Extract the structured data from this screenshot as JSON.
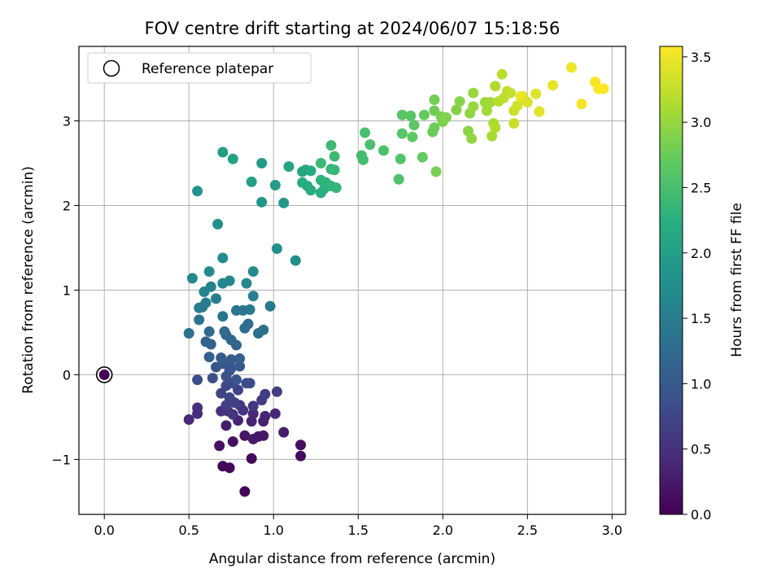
{
  "chart_data": {
    "type": "scatter",
    "title": "FOV centre drift starting at 2024/06/07 15:18:56",
    "xlabel": "Angular distance from reference (arcmin)",
    "ylabel": "Rotation from reference (arcmin)",
    "xlim": [
      -0.15,
      3.08
    ],
    "ylim": [
      -1.65,
      3.88
    ],
    "xticks": [
      0.0,
      0.5,
      1.0,
      1.5,
      2.0,
      2.5,
      3.0
    ],
    "xtick_labels": [
      "0.0",
      "0.5",
      "1.0",
      "1.5",
      "2.0",
      "2.5",
      "3.0"
    ],
    "yticks": [
      -1,
      0,
      1,
      2,
      3
    ],
    "ytick_labels": [
      "−1",
      "0",
      "1",
      "2",
      "3"
    ],
    "grid": true,
    "legend": {
      "position": "top-left",
      "entries": [
        "Reference platepar"
      ]
    },
    "reference_point": {
      "x": 0.0,
      "y": 0.0,
      "c": 0.0
    },
    "colorbar": {
      "label": "Hours from first FF file",
      "colormap": "viridis",
      "range": [
        0.0,
        3.58
      ],
      "ticks": [
        0.0,
        0.5,
        1.0,
        1.5,
        2.0,
        2.5,
        3.0,
        3.5
      ],
      "tick_labels": [
        "0.0",
        "0.5",
        "1.0",
        "1.5",
        "2.0",
        "2.5",
        "3.0",
        "3.5"
      ]
    },
    "points": [
      [
        0.83,
        -1.38,
        0.02
      ],
      [
        0.7,
        -1.08,
        0.05
      ],
      [
        0.74,
        -1.1,
        0.07
      ],
      [
        0.87,
        -0.99,
        0.09
      ],
      [
        1.16,
        -0.96,
        0.11
      ],
      [
        1.16,
        -0.83,
        0.13
      ],
      [
        0.68,
        -0.84,
        0.15
      ],
      [
        0.76,
        -0.79,
        0.17
      ],
      [
        0.83,
        -0.72,
        0.19
      ],
      [
        0.91,
        -0.73,
        0.21
      ],
      [
        0.94,
        -0.72,
        0.23
      ],
      [
        0.88,
        -0.76,
        0.25
      ],
      [
        1.06,
        -0.68,
        0.27
      ],
      [
        0.72,
        -0.6,
        0.29
      ],
      [
        0.94,
        -0.55,
        0.31
      ],
      [
        0.79,
        -0.54,
        0.33
      ],
      [
        0.87,
        -0.55,
        0.35
      ],
      [
        0.95,
        -0.49,
        0.37
      ],
      [
        1.01,
        -0.46,
        0.39
      ],
      [
        0.88,
        -0.46,
        0.41
      ],
      [
        0.5,
        -0.53,
        0.43
      ],
      [
        0.55,
        -0.46,
        0.45
      ],
      [
        0.55,
        -0.39,
        0.47
      ],
      [
        0.69,
        -0.43,
        0.49
      ],
      [
        0.73,
        -0.43,
        0.51
      ],
      [
        0.76,
        -0.47,
        0.53
      ],
      [
        0.82,
        -0.42,
        0.55
      ],
      [
        0.8,
        -0.36,
        0.57
      ],
      [
        0.88,
        -0.37,
        0.59
      ],
      [
        0.93,
        -0.3,
        0.61
      ],
      [
        0.95,
        -0.23,
        0.63
      ],
      [
        1.02,
        -0.2,
        0.65
      ],
      [
        0.72,
        -0.36,
        0.67
      ],
      [
        0.77,
        -0.33,
        0.69
      ],
      [
        0.74,
        -0.27,
        0.71
      ],
      [
        0.69,
        -0.22,
        0.73
      ],
      [
        0.79,
        -0.18,
        0.75
      ],
      [
        0.72,
        -0.13,
        0.77
      ],
      [
        0.76,
        -0.1,
        0.79
      ],
      [
        0.84,
        -0.1,
        0.81
      ],
      [
        0.86,
        -0.1,
        0.83
      ],
      [
        0.55,
        -0.06,
        0.85
      ],
      [
        0.64,
        -0.04,
        0.87
      ],
      [
        0.72,
        -0.02,
        0.89
      ],
      [
        0.74,
        0.05,
        0.91
      ],
      [
        0.78,
        -0.06,
        0.93
      ],
      [
        0.66,
        0.09,
        0.95
      ],
      [
        0.75,
        0.08,
        0.97
      ],
      [
        0.8,
        0.1,
        0.99
      ],
      [
        0.7,
        0.13,
        1.01
      ],
      [
        0.69,
        0.2,
        1.03
      ],
      [
        0.75,
        0.18,
        1.05
      ],
      [
        0.8,
        0.19,
        1.07
      ],
      [
        0.62,
        0.21,
        1.09
      ],
      [
        0.63,
        0.36,
        1.11
      ],
      [
        0.78,
        0.35,
        1.13
      ],
      [
        0.6,
        0.39,
        1.15
      ],
      [
        0.72,
        0.47,
        1.17
      ],
      [
        0.75,
        0.41,
        1.19
      ],
      [
        0.62,
        0.51,
        1.21
      ],
      [
        0.71,
        0.51,
        1.23
      ],
      [
        0.83,
        0.55,
        1.25
      ],
      [
        0.85,
        0.6,
        1.27
      ],
      [
        0.91,
        0.49,
        1.29
      ],
      [
        0.94,
        0.53,
        1.31
      ],
      [
        0.5,
        0.49,
        1.33
      ],
      [
        0.56,
        0.65,
        1.35
      ],
      [
        0.7,
        0.69,
        1.37
      ],
      [
        0.78,
        0.76,
        1.39
      ],
      [
        0.82,
        0.76,
        1.41
      ],
      [
        0.86,
        0.77,
        1.43
      ],
      [
        0.98,
        0.81,
        1.45
      ],
      [
        0.56,
        0.79,
        1.47
      ],
      [
        0.58,
        0.8,
        1.49
      ],
      [
        0.6,
        0.85,
        1.51
      ],
      [
        0.66,
        0.9,
        1.53
      ],
      [
        0.88,
        0.93,
        1.55
      ],
      [
        0.59,
        0.98,
        1.57
      ],
      [
        0.63,
        1.04,
        1.59
      ],
      [
        0.7,
        1.08,
        1.61
      ],
      [
        0.74,
        1.11,
        1.63
      ],
      [
        0.84,
        1.08,
        1.65
      ],
      [
        0.52,
        1.14,
        1.67
      ],
      [
        0.62,
        1.22,
        1.69
      ],
      [
        0.88,
        1.22,
        1.71
      ],
      [
        0.7,
        1.38,
        1.73
      ],
      [
        1.13,
        1.35,
        1.75
      ],
      [
        1.02,
        1.49,
        1.77
      ],
      [
        0.67,
        1.78,
        1.79
      ],
      [
        0.55,
        2.17,
        1.83
      ],
      [
        0.93,
        2.04,
        1.87
      ],
      [
        1.06,
        2.03,
        1.9
      ],
      [
        0.93,
        2.5,
        1.93
      ],
      [
        1.01,
        2.24,
        1.96
      ],
      [
        0.87,
        2.28,
        1.99
      ],
      [
        0.7,
        2.63,
        2.01
      ],
      [
        0.76,
        2.55,
        2.04
      ],
      [
        1.09,
        2.46,
        2.07
      ],
      [
        1.17,
        2.4,
        2.1
      ],
      [
        1.19,
        2.42,
        2.13
      ],
      [
        1.22,
        2.41,
        2.16
      ],
      [
        1.17,
        2.27,
        2.18
      ],
      [
        1.2,
        2.23,
        2.2
      ],
      [
        1.22,
        2.18,
        2.22
      ],
      [
        1.28,
        2.15,
        2.24
      ],
      [
        1.3,
        2.2,
        2.26
      ],
      [
        1.28,
        2.3,
        2.28
      ],
      [
        1.31,
        2.27,
        2.3
      ],
      [
        1.34,
        2.23,
        2.32
      ],
      [
        1.37,
        2.21,
        2.34
      ],
      [
        1.34,
        2.43,
        2.36
      ],
      [
        1.36,
        2.42,
        2.38
      ],
      [
        1.28,
        2.5,
        2.4
      ],
      [
        1.36,
        2.58,
        2.42
      ],
      [
        1.34,
        2.71,
        2.44
      ],
      [
        1.52,
        2.59,
        2.46
      ],
      [
        1.53,
        2.54,
        2.48
      ],
      [
        1.54,
        2.86,
        2.5
      ],
      [
        1.57,
        2.72,
        2.52
      ],
      [
        1.65,
        2.65,
        2.54
      ],
      [
        1.74,
        2.31,
        2.56
      ],
      [
        1.75,
        2.55,
        2.58
      ],
      [
        1.76,
        2.85,
        2.6
      ],
      [
        1.76,
        3.07,
        2.62
      ],
      [
        1.81,
        3.06,
        2.64
      ],
      [
        1.83,
        2.95,
        2.66
      ],
      [
        1.82,
        2.81,
        2.68
      ],
      [
        1.88,
        2.57,
        2.7
      ],
      [
        1.89,
        3.07,
        2.72
      ],
      [
        1.94,
        2.87,
        2.74
      ],
      [
        1.95,
        2.92,
        2.76
      ],
      [
        1.95,
        3.12,
        2.78
      ],
      [
        1.95,
        3.25,
        2.8
      ],
      [
        1.96,
        2.4,
        2.82
      ],
      [
        1.99,
        3.05,
        2.84
      ],
      [
        2.0,
        2.99,
        2.86
      ],
      [
        2.02,
        3.04,
        2.88
      ],
      [
        2.08,
        3.13,
        2.9
      ],
      [
        2.1,
        3.23,
        2.92
      ],
      [
        2.15,
        2.88,
        2.94
      ],
      [
        2.16,
        3.09,
        2.96
      ],
      [
        2.17,
        2.79,
        2.98
      ],
      [
        2.18,
        3.17,
        3.0
      ],
      [
        2.18,
        3.33,
        3.02
      ],
      [
        2.25,
        3.22,
        3.04
      ],
      [
        2.26,
        3.12,
        3.06
      ],
      [
        2.28,
        3.22,
        3.08
      ],
      [
        2.29,
        2.82,
        3.1
      ],
      [
        2.3,
        2.97,
        3.12
      ],
      [
        2.31,
        3.41,
        3.14
      ],
      [
        2.31,
        2.92,
        3.16
      ],
      [
        2.33,
        3.23,
        3.18
      ],
      [
        2.35,
        3.55,
        3.2
      ],
      [
        2.36,
        3.27,
        3.22
      ],
      [
        2.38,
        3.35,
        3.24
      ],
      [
        2.4,
        3.33,
        3.26
      ],
      [
        2.42,
        2.97,
        3.28
      ],
      [
        2.42,
        3.12,
        3.3
      ],
      [
        2.44,
        3.18,
        3.32
      ],
      [
        2.47,
        3.29,
        3.34
      ],
      [
        2.48,
        3.25,
        3.36
      ],
      [
        2.5,
        3.22,
        3.38
      ],
      [
        2.55,
        3.32,
        3.4
      ],
      [
        2.57,
        3.11,
        3.42
      ],
      [
        2.65,
        3.42,
        3.44
      ],
      [
        2.46,
        3.29,
        3.48
      ],
      [
        2.76,
        3.63,
        3.5
      ],
      [
        2.82,
        3.2,
        3.52
      ],
      [
        2.9,
        3.46,
        3.54
      ],
      [
        2.92,
        3.38,
        3.56
      ],
      [
        2.95,
        3.38,
        3.58
      ]
    ]
  }
}
